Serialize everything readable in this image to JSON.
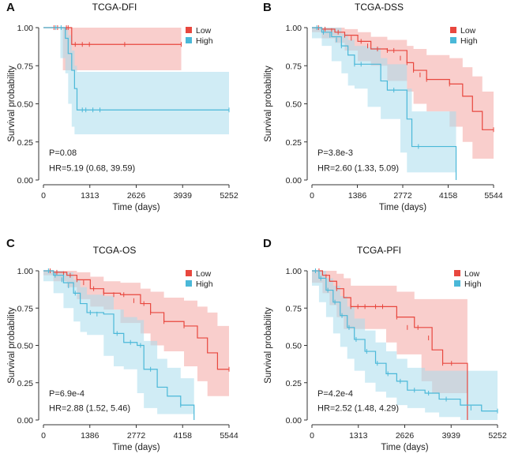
{
  "colors": {
    "low": "#e8473e",
    "high": "#4ab8d8",
    "low_band": "#f4a6a3",
    "high_band": "#a9dcec",
    "axis": "#333333"
  },
  "chart_data": [
    {
      "type": "line",
      "panel": "A",
      "title": "TCGA-DFI",
      "xlabel": "Time (days)",
      "ylabel": "Survival probability",
      "xlim": [
        0,
        5252
      ],
      "ylim": [
        0,
        1
      ],
      "xticks": [
        "0",
        "1313",
        "2626",
        "3939",
        "5252"
      ],
      "yticks": [
        "0.00",
        "0.25",
        "0.50",
        "0.75",
        "1.00"
      ],
      "pvalue": "P=0.08",
      "hr": "HR=5.19 (0.68, 39.59)",
      "legend": [
        "Low",
        "High"
      ],
      "series": [
        {
          "name": "Low",
          "x": [
            0,
            550,
            800,
            3900
          ],
          "y": [
            1.0,
            1.0,
            0.89,
            0.89
          ],
          "upper": [
            1.0,
            1.0,
            1.0,
            1.0
          ],
          "lower": [
            1.0,
            1.0,
            0.72,
            0.72
          ],
          "censors": [
            [
              300,
              1.0
            ],
            [
              400,
              1.0
            ],
            [
              650,
              1.0
            ],
            [
              700,
              1.0
            ],
            [
              900,
              0.89
            ],
            [
              1100,
              0.89
            ],
            [
              1300,
              0.89
            ],
            [
              2300,
              0.89
            ],
            [
              3900,
              0.89
            ]
          ]
        },
        {
          "name": "High",
          "x": [
            0,
            480,
            620,
            700,
            800,
            880,
            950,
            5252
          ],
          "y": [
            1.0,
            1.0,
            0.93,
            0.83,
            0.72,
            0.6,
            0.46,
            0.46
          ],
          "upper": [
            1.0,
            1.0,
            1.0,
            0.95,
            0.85,
            0.75,
            0.71,
            0.71
          ],
          "lower": [
            1.0,
            1.0,
            0.8,
            0.7,
            0.5,
            0.35,
            0.3,
            0.3
          ],
          "censors": [
            [
              350,
              1.0
            ],
            [
              500,
              1.0
            ],
            [
              1100,
              0.46
            ],
            [
              1200,
              0.46
            ],
            [
              1400,
              0.46
            ],
            [
              1600,
              0.46
            ],
            [
              5252,
              0.46
            ]
          ]
        }
      ]
    },
    {
      "type": "line",
      "panel": "B",
      "title": "TCGA-DSS",
      "xlabel": "Time (days)",
      "ylabel": "Survival probability",
      "xlim": [
        0,
        5544
      ],
      "ylim": [
        0,
        1
      ],
      "xticks": [
        "0",
        "1386",
        "2772",
        "4158",
        "5544"
      ],
      "yticks": [
        "0.00",
        "0.25",
        "0.50",
        "0.75",
        "1.00"
      ],
      "pvalue": "P=3.8e-3",
      "hr": "HR=2.60 (1.33, 5.09)",
      "legend": [
        "Low",
        "High"
      ],
      "series": [
        {
          "name": "Low",
          "x": [
            0,
            300,
            700,
            1000,
            1400,
            1800,
            2300,
            2900,
            3100,
            3500,
            4200,
            4600,
            4900,
            5200,
            5544
          ],
          "y": [
            1.0,
            0.99,
            0.97,
            0.95,
            0.91,
            0.86,
            0.85,
            0.77,
            0.72,
            0.66,
            0.63,
            0.55,
            0.45,
            0.33,
            0.33
          ],
          "upper": [
            1.0,
            1.0,
            1.0,
            0.99,
            0.97,
            0.94,
            0.92,
            0.88,
            0.86,
            0.82,
            0.8,
            0.74,
            0.68,
            0.58,
            0.58
          ],
          "lower": [
            1.0,
            0.97,
            0.93,
            0.9,
            0.85,
            0.78,
            0.75,
            0.65,
            0.58,
            0.5,
            0.45,
            0.35,
            0.25,
            0.14,
            0.14
          ],
          "censors": [
            [
              200,
              1.0
            ],
            [
              400,
              0.99
            ],
            [
              600,
              0.98
            ],
            [
              800,
              0.97
            ],
            [
              1000,
              0.95
            ],
            [
              1200,
              0.93
            ],
            [
              1500,
              0.91
            ],
            [
              1700,
              0.88
            ],
            [
              2000,
              0.86
            ],
            [
              2300,
              0.85
            ],
            [
              2500,
              0.85
            ],
            [
              2700,
              0.8
            ],
            [
              2900,
              0.77
            ],
            [
              3100,
              0.72
            ],
            [
              3300,
              0.69
            ],
            [
              3500,
              0.66
            ],
            [
              4200,
              0.63
            ],
            [
              5544,
              0.33
            ]
          ]
        },
        {
          "name": "High",
          "x": [
            0,
            300,
            600,
            900,
            1100,
            1300,
            1700,
            2100,
            2300,
            2700,
            2900,
            3050,
            3250,
            4400
          ],
          "y": [
            1.0,
            0.97,
            0.94,
            0.88,
            0.82,
            0.76,
            0.76,
            0.65,
            0.59,
            0.59,
            0.4,
            0.22,
            0.22,
            0.0
          ],
          "upper": [
            1.0,
            1.0,
            1.0,
            0.96,
            0.92,
            0.88,
            0.87,
            0.8,
            0.76,
            0.76,
            0.6,
            0.45,
            0.45,
            0.45
          ],
          "lower": [
            1.0,
            0.93,
            0.88,
            0.78,
            0.7,
            0.62,
            0.6,
            0.48,
            0.4,
            0.4,
            0.18,
            0.05,
            0.05,
            0.05
          ],
          "censors": [
            [
              150,
              1.0
            ],
            [
              350,
              0.97
            ],
            [
              550,
              0.95
            ],
            [
              750,
              0.92
            ],
            [
              900,
              0.88
            ],
            [
              1300,
              0.76
            ],
            [
              1500,
              0.76
            ],
            [
              2500,
              0.59
            ],
            [
              3250,
              0.22
            ]
          ]
        }
      ]
    },
    {
      "type": "line",
      "panel": "C",
      "title": "TCGA-OS",
      "xlabel": "Time (days)",
      "ylabel": "Survival probability",
      "xlim": [
        0,
        5544
      ],
      "ylim": [
        0,
        1
      ],
      "xticks": [
        "0",
        "1386",
        "2772",
        "4158",
        "5544"
      ],
      "yticks": [
        "0.00",
        "0.25",
        "0.50",
        "0.75",
        "1.00"
      ],
      "pvalue": "P=6.9e-4",
      "hr": "HR=2.88 (1.52, 5.46)",
      "legend": [
        "Low",
        "High"
      ],
      "series": [
        {
          "name": "Low",
          "x": [
            0,
            300,
            700,
            1000,
            1400,
            1800,
            2300,
            2900,
            3200,
            3600,
            4200,
            4600,
            4900,
            5200,
            5544
          ],
          "y": [
            1.0,
            0.99,
            0.97,
            0.94,
            0.88,
            0.85,
            0.84,
            0.78,
            0.72,
            0.66,
            0.63,
            0.55,
            0.45,
            0.34,
            0.34
          ],
          "upper": [
            1.0,
            1.0,
            1.0,
            0.99,
            0.96,
            0.93,
            0.92,
            0.88,
            0.86,
            0.82,
            0.8,
            0.76,
            0.72,
            0.63,
            0.63
          ],
          "lower": [
            1.0,
            0.97,
            0.93,
            0.89,
            0.81,
            0.76,
            0.74,
            0.65,
            0.58,
            0.5,
            0.46,
            0.36,
            0.26,
            0.16,
            0.16
          ],
          "censors": [
            [
              200,
              1.0
            ],
            [
              400,
              0.99
            ],
            [
              600,
              0.98
            ],
            [
              800,
              0.97
            ],
            [
              1000,
              0.94
            ],
            [
              1200,
              0.92
            ],
            [
              1500,
              0.88
            ],
            [
              1800,
              0.85
            ],
            [
              2100,
              0.84
            ],
            [
              2400,
              0.84
            ],
            [
              2700,
              0.8
            ],
            [
              3000,
              0.78
            ],
            [
              3200,
              0.72
            ],
            [
              3600,
              0.66
            ],
            [
              4200,
              0.63
            ],
            [
              5544,
              0.34
            ]
          ]
        },
        {
          "name": "High",
          "x": [
            0,
            300,
            600,
            900,
            1100,
            1300,
            1800,
            2100,
            2400,
            2800,
            3000,
            3400,
            3700,
            4100,
            4500
          ],
          "y": [
            1.0,
            0.97,
            0.92,
            0.85,
            0.78,
            0.72,
            0.71,
            0.58,
            0.52,
            0.5,
            0.34,
            0.22,
            0.16,
            0.1,
            0.0
          ],
          "upper": [
            1.0,
            1.0,
            0.99,
            0.94,
            0.89,
            0.84,
            0.83,
            0.74,
            0.69,
            0.67,
            0.53,
            0.41,
            0.35,
            0.28,
            0.28
          ],
          "lower": [
            1.0,
            0.93,
            0.85,
            0.75,
            0.66,
            0.59,
            0.57,
            0.43,
            0.36,
            0.34,
            0.18,
            0.08,
            0.04,
            0.04,
            0.04
          ],
          "censors": [
            [
              150,
              1.0
            ],
            [
              350,
              0.97
            ],
            [
              550,
              0.94
            ],
            [
              750,
              0.9
            ],
            [
              950,
              0.85
            ],
            [
              1400,
              0.72
            ],
            [
              1600,
              0.71
            ],
            [
              2200,
              0.58
            ],
            [
              2600,
              0.52
            ],
            [
              2900,
              0.5
            ],
            [
              3200,
              0.34
            ],
            [
              4100,
              0.1
            ]
          ]
        }
      ]
    },
    {
      "type": "line",
      "panel": "D",
      "title": "TCGA-PFI",
      "xlabel": "Time (days)",
      "ylabel": "Survival probability",
      "xlim": [
        0,
        5252
      ],
      "ylim": [
        0,
        1
      ],
      "xticks": [
        "0",
        "1313",
        "2626",
        "3939",
        "5252"
      ],
      "yticks": [
        "0.00",
        "0.25",
        "0.50",
        "0.75",
        "1.00"
      ],
      "pvalue": "P=4.2e-4",
      "hr": "HR=2.52 (1.48, 4.29)",
      "legend": [
        "Low",
        "High"
      ],
      "series": [
        {
          "name": "Low",
          "x": [
            0,
            300,
            500,
            700,
            900,
            1100,
            1300,
            2100,
            2400,
            2900,
            3100,
            3400,
            3700,
            4100,
            4400
          ],
          "y": [
            1.0,
            0.97,
            0.93,
            0.88,
            0.82,
            0.76,
            0.76,
            0.76,
            0.69,
            0.62,
            0.62,
            0.47,
            0.38,
            0.38,
            0.0
          ],
          "upper": [
            1.0,
            1.0,
            1.0,
            0.98,
            0.95,
            0.9,
            0.9,
            0.9,
            0.86,
            0.81,
            0.81,
            0.81,
            0.81,
            0.81,
            0.81
          ],
          "lower": [
            1.0,
            0.92,
            0.85,
            0.77,
            0.69,
            0.61,
            0.61,
            0.61,
            0.52,
            0.44,
            0.44,
            0.26,
            0.18,
            0.18,
            0.18
          ],
          "censors": [
            [
              200,
              1.0
            ],
            [
              400,
              0.96
            ],
            [
              700,
              0.88
            ],
            [
              1100,
              0.76
            ],
            [
              1300,
              0.76
            ],
            [
              1500,
              0.76
            ],
            [
              1800,
              0.76
            ],
            [
              2000,
              0.76
            ],
            [
              2400,
              0.69
            ],
            [
              2700,
              0.62
            ],
            [
              3000,
              0.62
            ],
            [
              3300,
              0.55
            ],
            [
              3700,
              0.38
            ],
            [
              3950,
              0.38
            ]
          ]
        },
        {
          "name": "High",
          "x": [
            0,
            200,
            400,
            600,
            800,
            1000,
            1200,
            1500,
            1800,
            2100,
            2400,
            2700,
            3200,
            3600,
            4200,
            4800,
            5252
          ],
          "y": [
            1.0,
            0.95,
            0.87,
            0.79,
            0.7,
            0.62,
            0.54,
            0.46,
            0.38,
            0.31,
            0.26,
            0.2,
            0.18,
            0.14,
            0.1,
            0.06,
            0.06
          ],
          "upper": [
            1.0,
            1.0,
            0.95,
            0.9,
            0.83,
            0.76,
            0.68,
            0.6,
            0.52,
            0.46,
            0.41,
            0.35,
            0.33,
            0.33,
            0.33,
            0.33,
            0.33
          ],
          "lower": [
            1.0,
            0.9,
            0.79,
            0.69,
            0.58,
            0.49,
            0.41,
            0.33,
            0.25,
            0.19,
            0.15,
            0.1,
            0.08,
            0.05,
            0.02,
            0.0,
            0.0
          ],
          "censors": [
            [
              100,
              1.0
            ],
            [
              250,
              0.95
            ],
            [
              450,
              0.87
            ],
            [
              650,
              0.79
            ],
            [
              850,
              0.7
            ],
            [
              1050,
              0.62
            ],
            [
              1250,
              0.54
            ],
            [
              1550,
              0.46
            ],
            [
              1850,
              0.38
            ],
            [
              2150,
              0.31
            ],
            [
              2500,
              0.26
            ],
            [
              2900,
              0.2
            ],
            [
              3300,
              0.18
            ],
            [
              3800,
              0.14
            ],
            [
              4500,
              0.08
            ],
            [
              5252,
              0.06
            ]
          ]
        }
      ]
    }
  ]
}
